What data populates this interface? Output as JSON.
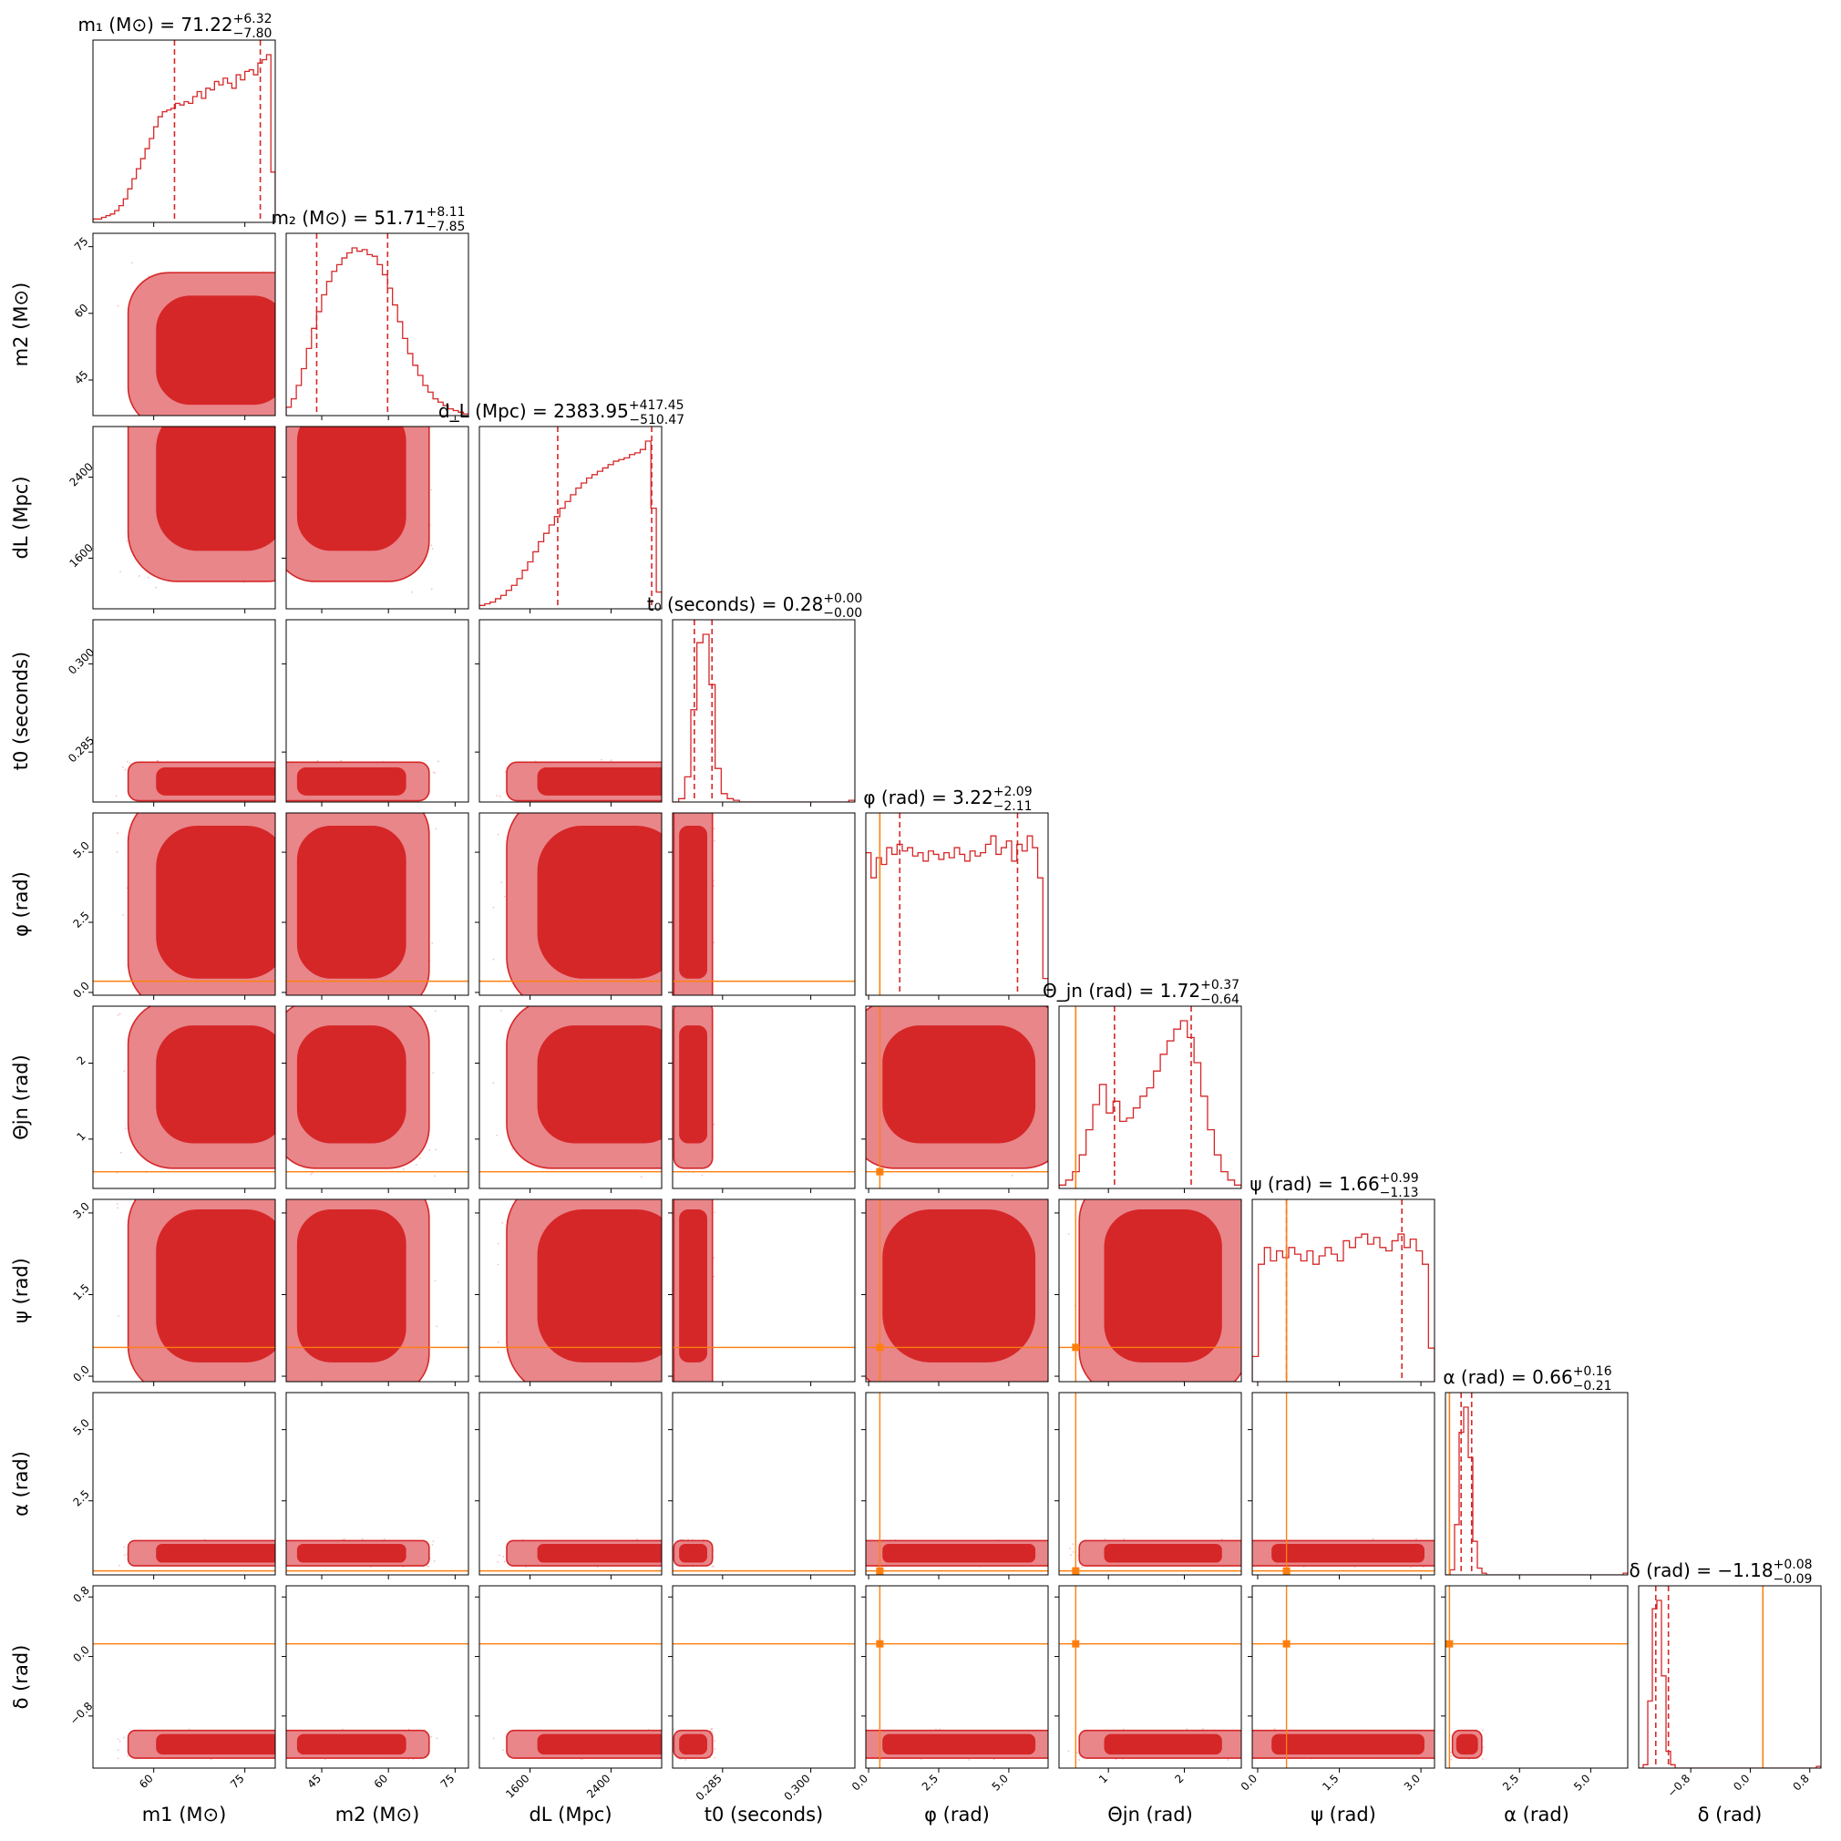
{
  "chart_data": {
    "type": "corner",
    "colors": {
      "posterior": "#d62728",
      "posterior_light": "#e8868a",
      "injection": "#ff7f0e",
      "axes": "#000000"
    },
    "parameters": [
      {
        "key": "m1",
        "axis_label": "m1 (M⊙)",
        "title": "m1 (M⊙) = 71.22 +6.32 −7.80",
        "title_main": "m₁ (M⊙) = 71.22",
        "title_plus": "+6.32",
        "title_minus": "−7.80",
        "range": [
          50,
          80
        ],
        "ticks": [
          60,
          75
        ],
        "tick_labels": [
          "60",
          "75"
        ],
        "median": 71.22,
        "q_lower": 63.42,
        "q_upper": 77.54,
        "injection": null,
        "hist": [
          0.02,
          0.02,
          0.03,
          0.04,
          0.05,
          0.07,
          0.1,
          0.14,
          0.2,
          0.26,
          0.32,
          0.38,
          0.44,
          0.5,
          0.57,
          0.63,
          0.66,
          0.67,
          0.68,
          0.71,
          0.7,
          0.72,
          0.71,
          0.75,
          0.78,
          0.74,
          0.8,
          0.79,
          0.84,
          0.82,
          0.86,
          0.83,
          0.8,
          0.88,
          0.85,
          0.9,
          0.91,
          0.88,
          0.95,
          0.97,
          1.0,
          0.3
        ]
      },
      {
        "key": "m2",
        "axis_label": "m2 (M⊙)",
        "title": "m2 (M⊙) = 51.71 +8.11 −7.85",
        "title_main": "m₂ (M⊙) = 51.71",
        "title_plus": "+8.11",
        "title_minus": "−7.85",
        "range": [
          37,
          78
        ],
        "ticks": [
          45,
          60,
          75
        ],
        "tick_labels": [
          "45",
          "60",
          "75"
        ],
        "median": 51.71,
        "q_lower": 43.86,
        "q_upper": 59.82,
        "injection": null,
        "hist": [
          0.05,
          0.1,
          0.18,
          0.28,
          0.4,
          0.52,
          0.62,
          0.72,
          0.8,
          0.86,
          0.9,
          0.94,
          0.97,
          1.0,
          0.98,
          0.99,
          0.96,
          0.95,
          0.9,
          0.84,
          0.76,
          0.66,
          0.56,
          0.46,
          0.37,
          0.3,
          0.24,
          0.18,
          0.14,
          0.1,
          0.08,
          0.06,
          0.04,
          0.03,
          0.02,
          0.01
        ]
      },
      {
        "key": "dL",
        "axis_label": "dL (Mpc)",
        "title": "dL (Mpc) = 2383.95 +417.45 −510.47",
        "title_main": "d_L (Mpc) = 2383.95",
        "title_plus": "+417.45",
        "title_minus": "−510.47",
        "range": [
          1100,
          2900
        ],
        "ticks": [
          1600,
          2400
        ],
        "tick_labels": [
          "1600",
          "2400"
        ],
        "median": 2383.95,
        "q_lower": 1873.48,
        "q_upper": 2801.4,
        "injection": null,
        "hist": [
          0.02,
          0.03,
          0.04,
          0.06,
          0.08,
          0.11,
          0.14,
          0.18,
          0.23,
          0.28,
          0.34,
          0.4,
          0.45,
          0.5,
          0.55,
          0.6,
          0.64,
          0.68,
          0.72,
          0.75,
          0.78,
          0.8,
          0.82,
          0.84,
          0.86,
          0.88,
          0.89,
          0.9,
          0.92,
          0.93,
          0.95,
          1.0,
          0.6,
          0.1
        ]
      },
      {
        "key": "t0",
        "axis_label": "t0 (seconds)",
        "title": "t0 (seconds) = 0.28 +0.00 −0.00",
        "title_main": "t₀ (seconds) = 0.28",
        "title_plus": "+0.00",
        "title_minus": "−0.00",
        "range": [
          0.2765,
          0.3075
        ],
        "ticks": [
          0.285,
          0.3
        ],
        "tick_labels": [
          "0.285",
          "0.300"
        ],
        "median": 0.28,
        "q_lower": 0.2802,
        "q_upper": 0.2832,
        "injection": null,
        "hist": [
          0.0,
          0.02,
          0.15,
          0.55,
          0.95,
          1.0,
          0.7,
          0.2,
          0.05,
          0.02,
          0.01,
          0.0,
          0.0,
          0.0,
          0.0,
          0.0,
          0.0,
          0.0,
          0.0,
          0.0,
          0.0,
          0.0,
          0.0,
          0.0,
          0.0,
          0.0,
          0.0,
          0.0,
          0.0,
          0.01
        ]
      },
      {
        "key": "phi",
        "axis_label": "φ (rad)",
        "title": "φ (rad) = 3.22 +2.09 −2.11",
        "title_main": "φ (rad) = 3.22",
        "title_plus": "+2.09",
        "title_minus": "−2.11",
        "range": [
          -0.1,
          6.4
        ],
        "ticks": [
          0.0,
          2.5,
          5.0
        ],
        "tick_labels": [
          "0.0",
          "2.5",
          "5.0"
        ],
        "median": 3.22,
        "q_lower": 1.11,
        "q_upper": 5.31,
        "injection": 0.4,
        "hist": [
          0.85,
          0.7,
          0.82,
          0.78,
          0.88,
          0.84,
          0.9,
          0.86,
          0.88,
          0.83,
          0.85,
          0.8,
          0.86,
          0.84,
          0.81,
          0.85,
          0.82,
          0.88,
          0.84,
          0.8,
          0.86,
          0.83,
          0.85,
          0.9,
          0.95,
          0.84,
          0.88,
          0.92,
          0.8,
          0.9,
          0.86,
          0.95,
          0.88,
          0.7,
          0.1
        ]
      },
      {
        "key": "theta_jn",
        "axis_label": "Θjn (rad)",
        "title": "Θjn (rad) = 1.72 +0.37 −0.64",
        "title_main": "Θ_jn (rad) = 1.72",
        "title_plus": "+0.37",
        "title_minus": "−0.64",
        "range": [
          0.35,
          2.75
        ],
        "ticks": [
          1,
          2
        ],
        "tick_labels": [
          "1",
          "2"
        ],
        "median": 1.72,
        "q_lower": 1.08,
        "q_upper": 2.09,
        "injection": 0.57,
        "hist": [
          0.02,
          0.05,
          0.1,
          0.2,
          0.35,
          0.5,
          0.62,
          0.45,
          0.52,
          0.4,
          0.42,
          0.48,
          0.55,
          0.6,
          0.7,
          0.8,
          0.88,
          0.95,
          1.0,
          0.9,
          0.75,
          0.55,
          0.35,
          0.2,
          0.1,
          0.05,
          0.02
        ]
      },
      {
        "key": "psi",
        "axis_label": "ψ (rad)",
        "title": "ψ (rad) = 1.66 +0.99 −1.13",
        "title_main": "ψ (rad) = 1.66",
        "title_plus": "+0.99",
        "title_minus": "−1.13",
        "range": [
          -0.1,
          3.25
        ],
        "ticks": [
          0.0,
          1.5,
          3.0
        ],
        "tick_labels": [
          "0.0",
          "1.5",
          "3.0"
        ],
        "median": 1.66,
        "q_lower": 0.53,
        "q_upper": 2.65,
        "injection": 0.53,
        "hist": [
          0.15,
          0.7,
          0.8,
          0.72,
          0.78,
          0.74,
          0.8,
          0.76,
          0.72,
          0.78,
          0.7,
          0.75,
          0.8,
          0.76,
          0.72,
          0.84,
          0.8,
          0.86,
          0.88,
          0.82,
          0.86,
          0.8,
          0.78,
          0.84,
          0.88,
          0.8,
          0.85,
          0.78,
          0.7,
          0.2
        ]
      },
      {
        "key": "alpha",
        "axis_label": "α (rad)",
        "title": "α (rad) = 0.66 +0.16 −0.21",
        "title_main": "α (rad) = 0.66",
        "title_plus": "+0.16",
        "title_minus": "−0.21",
        "range": [
          -0.1,
          6.3
        ],
        "ticks": [
          2.5,
          5.0
        ],
        "tick_labels": [
          "2.5",
          "5.0"
        ],
        "median": 0.66,
        "q_lower": 0.45,
        "q_upper": 0.82,
        "injection": 0.04,
        "hist": [
          0.0,
          0.03,
          0.3,
          0.85,
          1.0,
          0.7,
          0.2,
          0.04,
          0.01,
          0.0,
          0.0,
          0.0,
          0.0,
          0.0,
          0.0,
          0.0,
          0.0,
          0.0,
          0.0,
          0.0,
          0.0,
          0.0,
          0.0,
          0.0,
          0.0,
          0.0,
          0.0,
          0.0,
          0.0,
          0.0,
          0.0,
          0.0,
          0.0,
          0.0,
          0.0,
          0.0,
          0.0,
          0.0,
          0.0,
          0.01
        ]
      },
      {
        "key": "delta",
        "axis_label": "δ (rad)",
        "title": "δ (rad) = −1.18 +0.08 −0.09",
        "title_main": "δ (rad) = −1.18",
        "title_plus": "+0.08",
        "title_minus": "−0.09",
        "range": [
          -1.5,
          0.95
        ],
        "ticks": [
          -0.8,
          0.0,
          0.8
        ],
        "tick_labels": [
          "−0.8",
          "0.0",
          "0.8"
        ],
        "median": -1.18,
        "q_lower": -1.27,
        "q_upper": -1.1,
        "injection": 0.17,
        "hist": [
          0.0,
          0.02,
          0.4,
          0.95,
          1.0,
          0.55,
          0.1,
          0.02,
          0.0,
          0.0,
          0.0,
          0.0,
          0.0,
          0.0,
          0.0,
          0.0,
          0.0,
          0.0,
          0.0,
          0.0,
          0.0,
          0.0,
          0.0,
          0.0,
          0.0,
          0.0,
          0.0,
          0.0,
          0.0,
          0.0,
          0.0,
          0.0,
          0.0,
          0.0,
          0.0,
          0.0,
          0.0,
          0.0,
          0.0,
          0.01
        ]
      }
    ],
    "contour_levels": [
      "outer",
      "inner"
    ]
  }
}
